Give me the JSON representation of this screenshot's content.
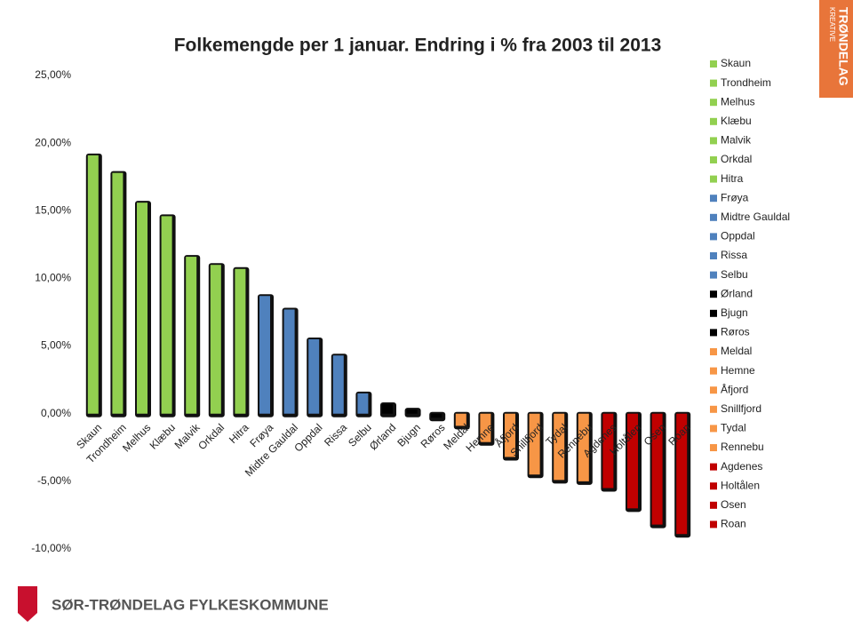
{
  "chart_data": {
    "type": "bar",
    "title": "Folkemengde per 1 januar. Endring i % fra 2003 til 2013",
    "categories": [
      "Skaun",
      "Trondheim",
      "Melhus",
      "Klæbu",
      "Malvik",
      "Orkdal",
      "Hitra",
      "Frøya",
      "Midtre Gauldal",
      "Oppdal",
      "Rissa",
      "Selbu",
      "Ørland",
      "Bjugn",
      "Røros",
      "Meldal",
      "Hemne",
      "Åfjord",
      "Snillfjord",
      "Tydal",
      "Rennebu",
      "Agdenes",
      "Holtålen",
      "Osen",
      "Roan"
    ],
    "values": [
      19.1,
      17.8,
      15.6,
      14.6,
      11.6,
      11.0,
      10.7,
      8.7,
      7.7,
      5.5,
      4.3,
      1.5,
      0.7,
      0.3,
      -0.3,
      -0.9,
      -2.1,
      -3.2,
      -4.5,
      -4.9,
      -5.0,
      -5.5,
      -7.0,
      -8.2,
      -8.9
    ],
    "colors": [
      "#92d050",
      "#92d050",
      "#92d050",
      "#92d050",
      "#92d050",
      "#92d050",
      "#92d050",
      "#4f81bd",
      "#4f81bd",
      "#4f81bd",
      "#4f81bd",
      "#4f81bd",
      "#000000",
      "#000000",
      "#000000",
      "#f79646",
      "#f79646",
      "#f79646",
      "#f79646",
      "#f79646",
      "#f79646",
      "#c00000",
      "#c00000",
      "#c00000",
      "#c00000"
    ],
    "ylim": [
      -10,
      25
    ],
    "yticks": [
      {
        "value": -10,
        "label": "-10,00%"
      },
      {
        "value": -5,
        "label": "-5,00%"
      },
      {
        "value": 0,
        "label": "0,00%"
      },
      {
        "value": 5,
        "label": "5,00%"
      },
      {
        "value": 10,
        "label": "10,00%"
      },
      {
        "value": 15,
        "label": "15,00%"
      },
      {
        "value": 20,
        "label": "20,00%"
      },
      {
        "value": 25,
        "label": "25,00%"
      }
    ],
    "grid": false,
    "legend": "right"
  },
  "footer": "SØR-TRØNDELAG FYLKESKOMMUNE",
  "badge": {
    "small": "KREATIVE",
    "big": "TRØNDELAG"
  }
}
